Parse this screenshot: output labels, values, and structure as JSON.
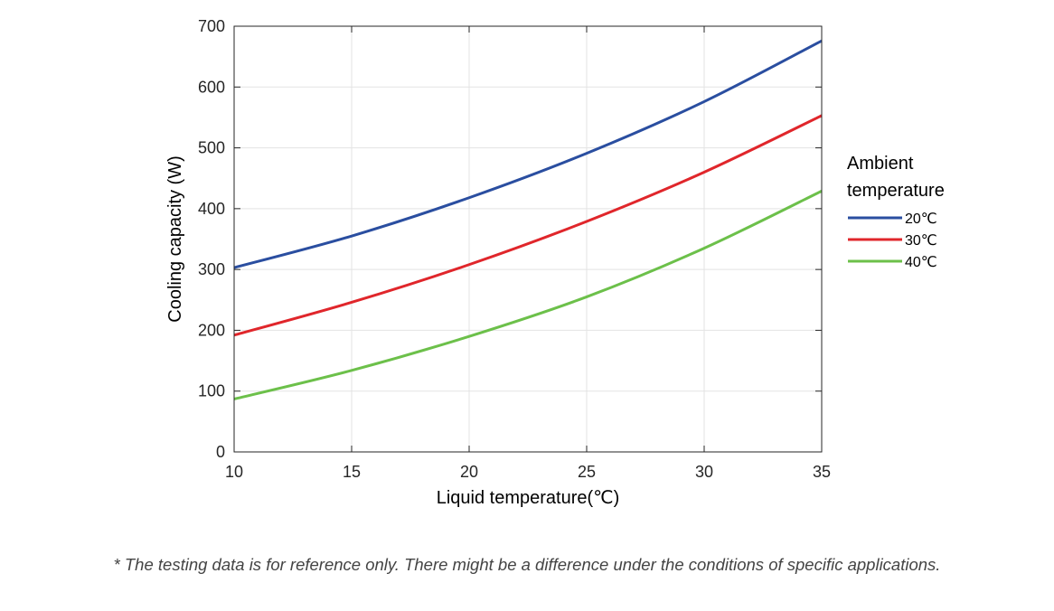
{
  "chart_data": {
    "type": "line",
    "title": "",
    "xlabel": "Liquid temperature(℃)",
    "ylabel": "Cooling capacity (W)",
    "xlim": [
      10,
      35
    ],
    "ylim": [
      0,
      700
    ],
    "x_ticks": [
      10,
      15,
      20,
      25,
      30,
      35
    ],
    "y_ticks": [
      0,
      100,
      200,
      300,
      400,
      500,
      600,
      700
    ],
    "grid": true,
    "legend_title": [
      "Ambient",
      "temperature"
    ],
    "legend_position": "right",
    "x": [
      10,
      15,
      20,
      25,
      30,
      35
    ],
    "series": [
      {
        "name": "20℃",
        "color": "#2a4ea0",
        "values": [
          303,
          355,
          418,
          491,
          576,
          676
        ]
      },
      {
        "name": "30℃",
        "color": "#e0262b",
        "values": [
          192,
          246,
          308,
          379,
          460,
          553
        ]
      },
      {
        "name": "40℃",
        "color": "#6cc04a",
        "values": [
          87,
          134,
          190,
          255,
          335,
          429
        ]
      }
    ]
  },
  "footnote": "* The testing data is for reference only. There might be a difference under the conditions of specific applications."
}
